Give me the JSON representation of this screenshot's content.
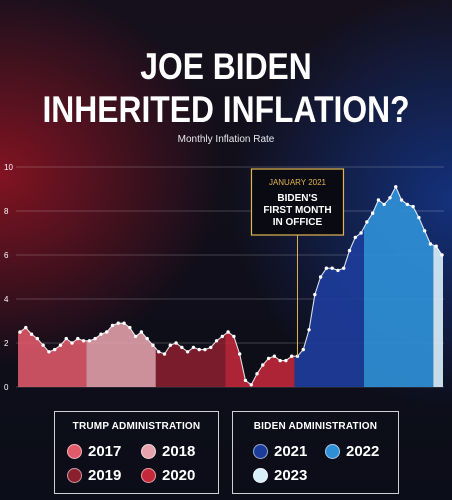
{
  "header": {
    "title_line1": "JOE BIDEN",
    "title_line2": "INHERITED INFLATION?",
    "subtitle": "Monthly Inflation Rate"
  },
  "annotation": {
    "date": "JANUARY 2021",
    "line1": "BIDEN'S",
    "line2": "FIRST MONTH",
    "line3": "IN OFFICE"
  },
  "legend": {
    "trump": {
      "title": "TRUMP ADMINISTRATION",
      "items": [
        {
          "label": "2017",
          "color": "#e05a6a"
        },
        {
          "label": "2018",
          "color": "#e6a3ac"
        },
        {
          "label": "2019",
          "color": "#8a1f2d"
        },
        {
          "label": "2020",
          "color": "#c4283a"
        }
      ]
    },
    "biden": {
      "title": "BIDEN ADMINISTRATION",
      "items": [
        {
          "label": "2021",
          "color": "#1d3c9a"
        },
        {
          "label": "2022",
          "color": "#2f8fd6"
        },
        {
          "label": "2023",
          "color": "#d8eef8"
        }
      ]
    }
  },
  "chart_data": {
    "type": "area",
    "title": "Monthly Inflation Rate",
    "ylim": [
      0,
      10
    ],
    "yticks": [
      "0",
      "2",
      "4",
      "6",
      "8",
      "10"
    ],
    "grid": true,
    "annotation_at": "2021-01",
    "series": [
      {
        "year": "2017",
        "color": "#e05a6a",
        "values": [
          2.5,
          2.7,
          2.4,
          2.2,
          1.9,
          1.6,
          1.7,
          1.9,
          2.2,
          2.0,
          2.2,
          2.1
        ]
      },
      {
        "year": "2018",
        "color": "#e6a3ac",
        "values": [
          2.1,
          2.2,
          2.4,
          2.5,
          2.8,
          2.9,
          2.9,
          2.7,
          2.3,
          2.5,
          2.2,
          1.9
        ]
      },
      {
        "year": "2019",
        "color": "#8a1f2d",
        "values": [
          1.6,
          1.5,
          1.9,
          2.0,
          1.8,
          1.6,
          1.8,
          1.7,
          1.7,
          1.8,
          2.1,
          2.3
        ]
      },
      {
        "year": "2020",
        "color": "#c4283a",
        "values": [
          2.5,
          2.3,
          1.5,
          0.3,
          0.1,
          0.6,
          1.0,
          1.3,
          1.4,
          1.2,
          1.2,
          1.4
        ]
      },
      {
        "year": "2021",
        "color": "#1d3c9a",
        "values": [
          1.4,
          1.7,
          2.6,
          4.2,
          5.0,
          5.4,
          5.4,
          5.3,
          5.4,
          6.2,
          6.8,
          7.0
        ]
      },
      {
        "year": "2022",
        "color": "#2f8fd6",
        "values": [
          7.5,
          7.9,
          8.5,
          8.3,
          8.6,
          9.1,
          8.5,
          8.3,
          8.2,
          7.7,
          7.1,
          6.5
        ]
      },
      {
        "year": "2023",
        "color": "#d8eef8",
        "values": [
          6.4,
          6.0
        ]
      }
    ]
  }
}
